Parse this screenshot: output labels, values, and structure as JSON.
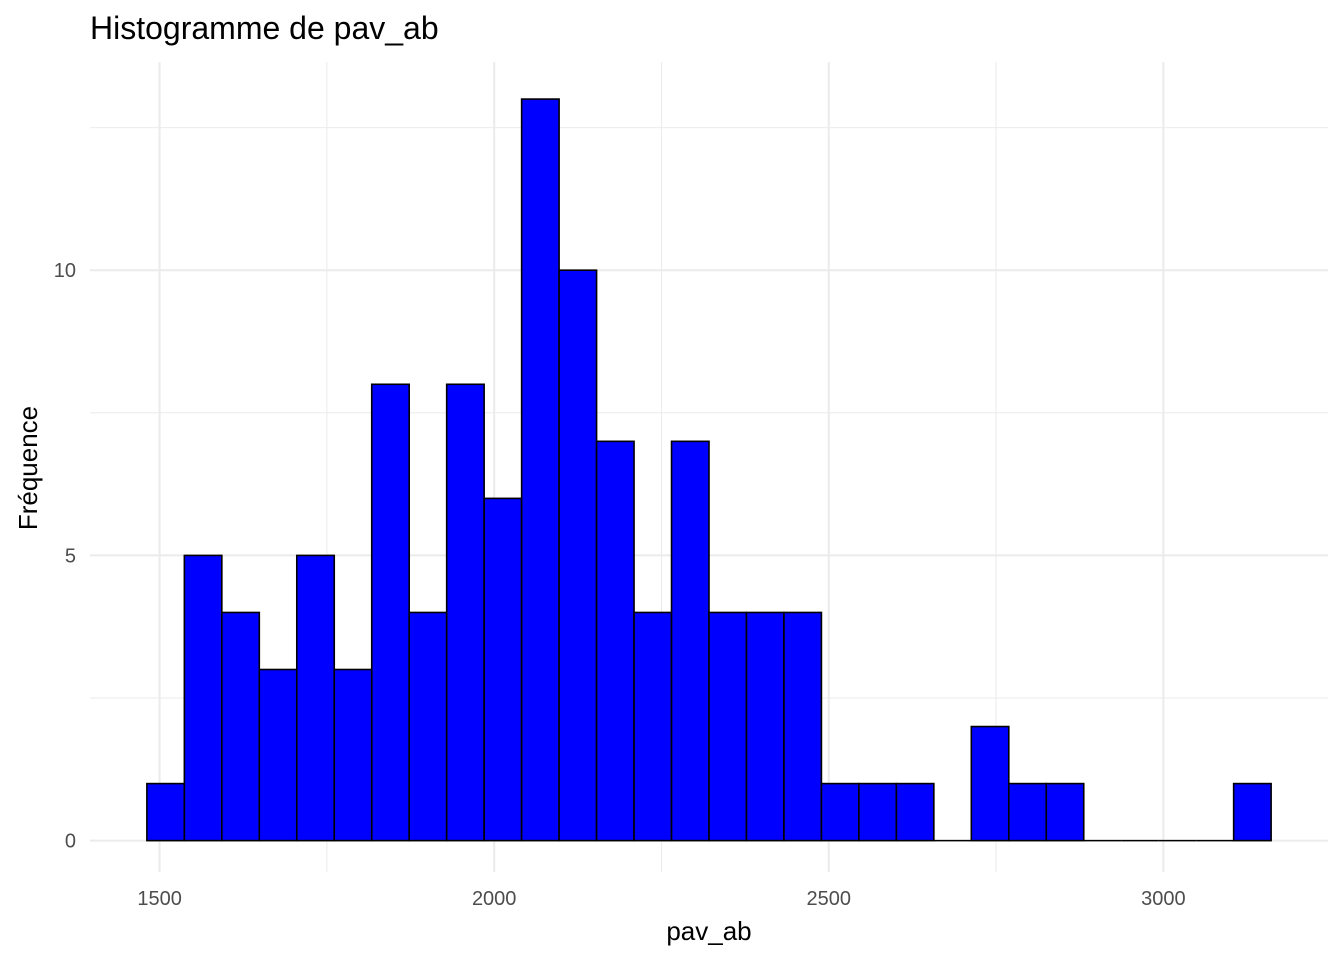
{
  "chart_data": {
    "type": "bar",
    "title": "Histogramme de pav_ab",
    "xlabel": "pav_ab",
    "ylabel": "Fréquence",
    "bin_edges": [
      1481,
      1537,
      1593,
      1649,
      1705,
      1761,
      1817,
      1873,
      1929,
      1985,
      2041,
      2097,
      2153,
      2209,
      2265,
      2321,
      2377,
      2433,
      2489,
      2545,
      2601,
      2657,
      2713,
      2769,
      2825,
      2881,
      2937,
      2993,
      3049,
      3105,
      3161
    ],
    "values": [
      1,
      5,
      4,
      3,
      5,
      3,
      8,
      4,
      8,
      6,
      13,
      10,
      7,
      4,
      7,
      4,
      4,
      4,
      1,
      1,
      1,
      0,
      2,
      1,
      1,
      0,
      0,
      0,
      0,
      1
    ],
    "xlim": [
      1396,
      3246
    ],
    "ylim": [
      -0.55,
      13.65
    ],
    "x_ticks": [
      1500,
      2000,
      2500,
      3000
    ],
    "x_tick_labels": [
      "1500",
      "2000",
      "2500",
      "3000"
    ],
    "y_ticks": [
      0,
      5,
      10
    ],
    "y_tick_labels": [
      "0",
      "5",
      "10"
    ],
    "x_minor_ticks": [
      1750,
      2250,
      2750
    ],
    "y_minor_ticks": [
      2.5,
      7.5,
      12.5
    ],
    "grid": true,
    "colors": {
      "fill": "#0000ff",
      "stroke": "#000000",
      "grid": "#ebebeb"
    }
  }
}
